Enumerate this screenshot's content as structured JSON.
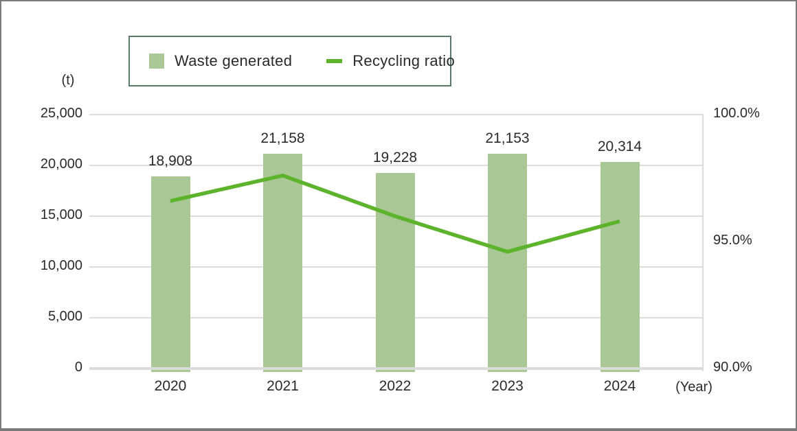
{
  "legend": {
    "items": [
      {
        "label": "Waste generated",
        "marker": "swatch-icon"
      },
      {
        "label": "Recycling ratio",
        "marker": "line-icon"
      }
    ]
  },
  "colors": {
    "bar": "#aac896",
    "line": "#5db32c",
    "legend_border": "#597a65",
    "grid": "#dcdcdc",
    "frame_border": "#7a7a7a",
    "text": "#2a2a2a"
  },
  "chart_data": {
    "type": "combo_bar_line",
    "title": "",
    "categories": [
      "2020",
      "2021",
      "2022",
      "2023",
      "2024"
    ],
    "series": [
      {
        "name": "Waste generated",
        "type": "bar",
        "axis": "left",
        "values": [
          18908,
          21158,
          19228,
          21153,
          20314
        ],
        "value_labels": [
          "18,908",
          "21,158",
          "19,228",
          "21,153",
          "20,314"
        ]
      },
      {
        "name": "Recycling ratio",
        "type": "line",
        "axis": "right",
        "values": [
          96.6,
          97.6,
          96.0,
          94.6,
          95.8
        ]
      }
    ],
    "left_axis": {
      "unit": "(t)",
      "min": 0,
      "max": 25000,
      "ticks": [
        0,
        5000,
        10000,
        15000,
        20000,
        25000
      ],
      "tick_labels": [
        "0",
        "5,000",
        "10,000",
        "15,000",
        "20,000",
        "25,000"
      ]
    },
    "right_axis": {
      "min": 90,
      "max": 100,
      "ticks": [
        90,
        95,
        100
      ],
      "tick_labels": [
        "90.0%",
        "95.0%",
        "100.0%"
      ]
    },
    "x_axis": {
      "unit_label": "(Year)"
    },
    "grid": true,
    "legend_position": "top-left"
  }
}
